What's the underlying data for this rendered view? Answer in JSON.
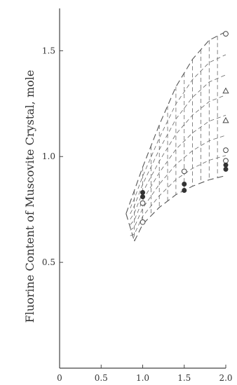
{
  "chart_data": {
    "type": "scatter",
    "title": "",
    "xlabel": "",
    "ylabel": "Fluorine Content of Muscovite Crystal, mole",
    "xlim": [
      0,
      2.0
    ],
    "ylim": [
      0,
      1.7
    ],
    "xticks": [
      0,
      0.5,
      1.0,
      1.5,
      2.0
    ],
    "xtick_labels": [
      "0",
      "0.5",
      "1.0",
      "1.5",
      "2.0"
    ],
    "yticks": [
      0.5,
      1.0,
      1.5
    ],
    "ytick_labels": [
      "0.5",
      "1.0",
      "1.5"
    ],
    "grid": false,
    "legend": "none",
    "region": {
      "upper_boundary": [
        [
          0.8,
          0.73
        ],
        [
          1.0,
          0.95
        ],
        [
          1.2,
          1.15
        ],
        [
          1.4,
          1.33
        ],
        [
          1.6,
          1.46
        ],
        [
          1.8,
          1.55
        ],
        [
          2.0,
          1.59
        ]
      ],
      "lower_boundary": [
        [
          0.9,
          0.6
        ],
        [
          1.0,
          0.68
        ],
        [
          1.2,
          0.76
        ],
        [
          1.4,
          0.82
        ],
        [
          1.6,
          0.86
        ],
        [
          1.8,
          0.89
        ],
        [
          2.0,
          0.91
        ]
      ]
    },
    "series": [
      {
        "marker": "open-circle",
        "points": [
          [
            1.0,
            0.69
          ],
          [
            1.0,
            0.78
          ],
          [
            1.5,
            0.93
          ],
          [
            2.0,
            1.58
          ],
          [
            2.0,
            1.03
          ],
          [
            2.0,
            0.98
          ]
        ]
      },
      {
        "marker": "open-triangle",
        "points": [
          [
            2.0,
            1.31
          ],
          [
            2.0,
            1.17
          ]
        ]
      },
      {
        "marker": "filled-circle",
        "points": [
          [
            1.0,
            0.81
          ],
          [
            1.0,
            0.83
          ],
          [
            1.5,
            0.84
          ],
          [
            1.5,
            0.87
          ],
          [
            2.0,
            0.94
          ],
          [
            2.0,
            0.96
          ]
        ]
      }
    ]
  }
}
